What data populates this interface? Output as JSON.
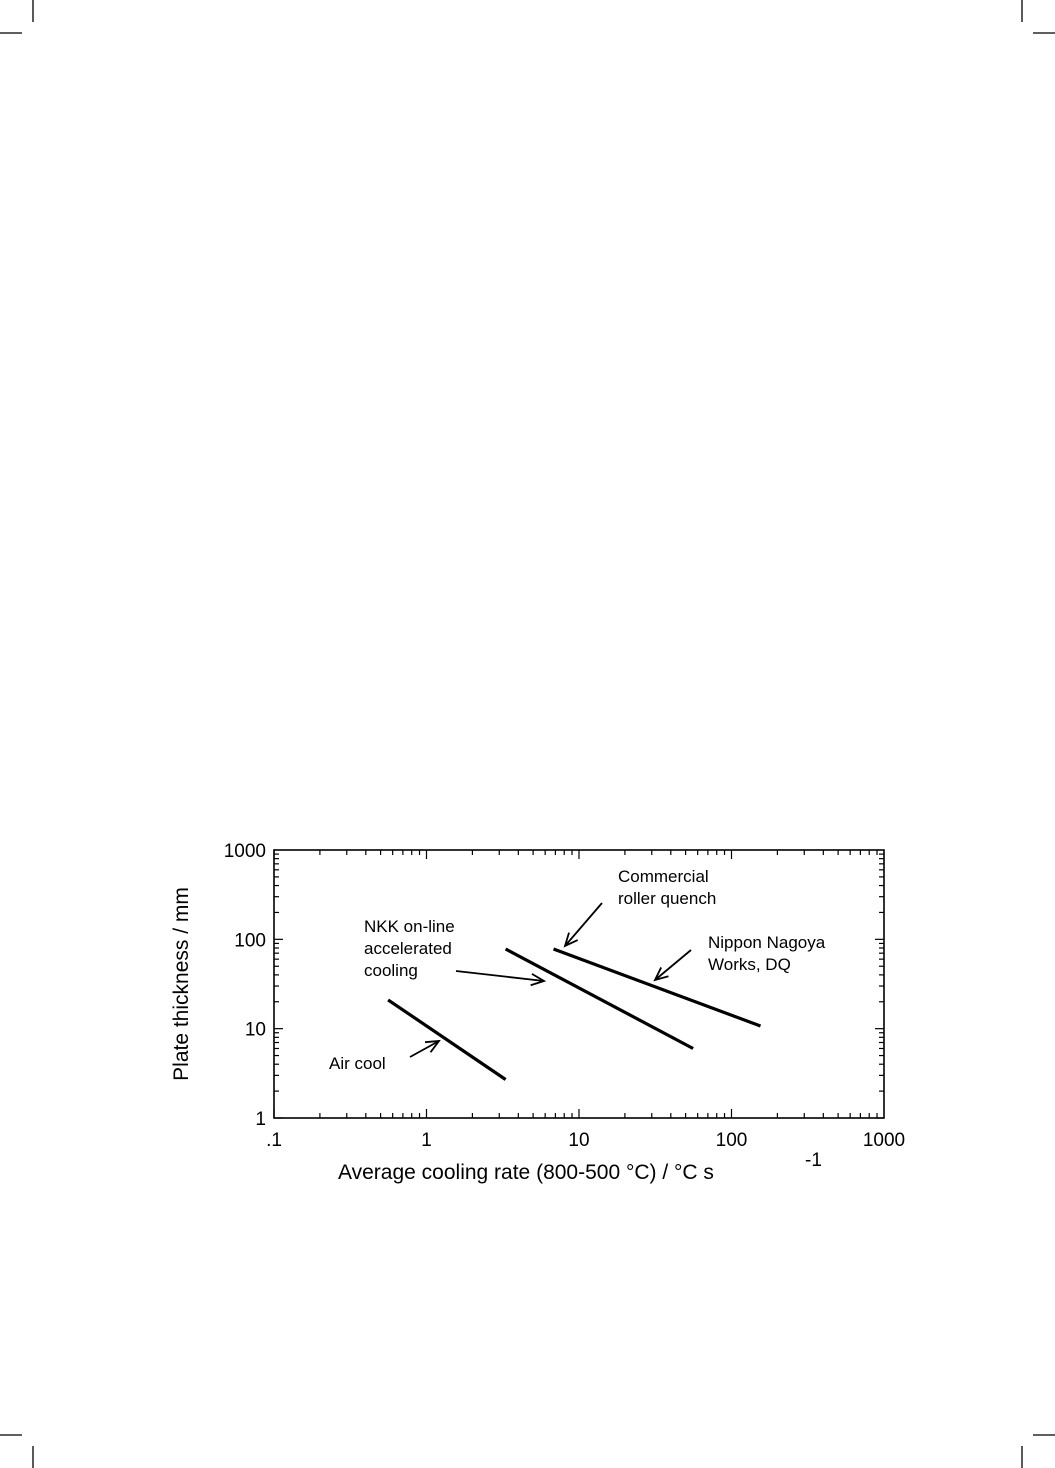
{
  "chart_data": {
    "type": "line",
    "xscale": "log",
    "yscale": "log",
    "xlim": [
      0.1,
      1000
    ],
    "ylim": [
      1,
      1000
    ],
    "xticks": [
      ".1",
      "1",
      "10",
      "100",
      "1000"
    ],
    "yticks": [
      "1",
      "10",
      "100",
      "1000"
    ],
    "xlabel": "Average cooling rate (800-500 °C) / °C s",
    "xlabel_superscript": "-1",
    "ylabel": "Plate thickness / mm",
    "grid": false,
    "series": [
      {
        "label_lines": [
          "Air  cool"
        ],
        "x": [
          0.56,
          3.3
        ],
        "y": [
          21,
          2.7
        ]
      },
      {
        "label_lines": [
          "NKK  on-line",
          "accelerated",
          "cooling"
        ],
        "x": [
          3.3,
          56
        ],
        "y": [
          78,
          6
        ]
      },
      {
        "label_lines": [
          "Commercial",
          "roller  quench"
        ],
        "x": [
          6.8,
          155
        ],
        "y": [
          78,
          10.7
        ]
      },
      {
        "label_lines": [
          "Nippon Nagoya",
          "Works, DQ"
        ],
        "x": [],
        "y": []
      }
    ]
  }
}
